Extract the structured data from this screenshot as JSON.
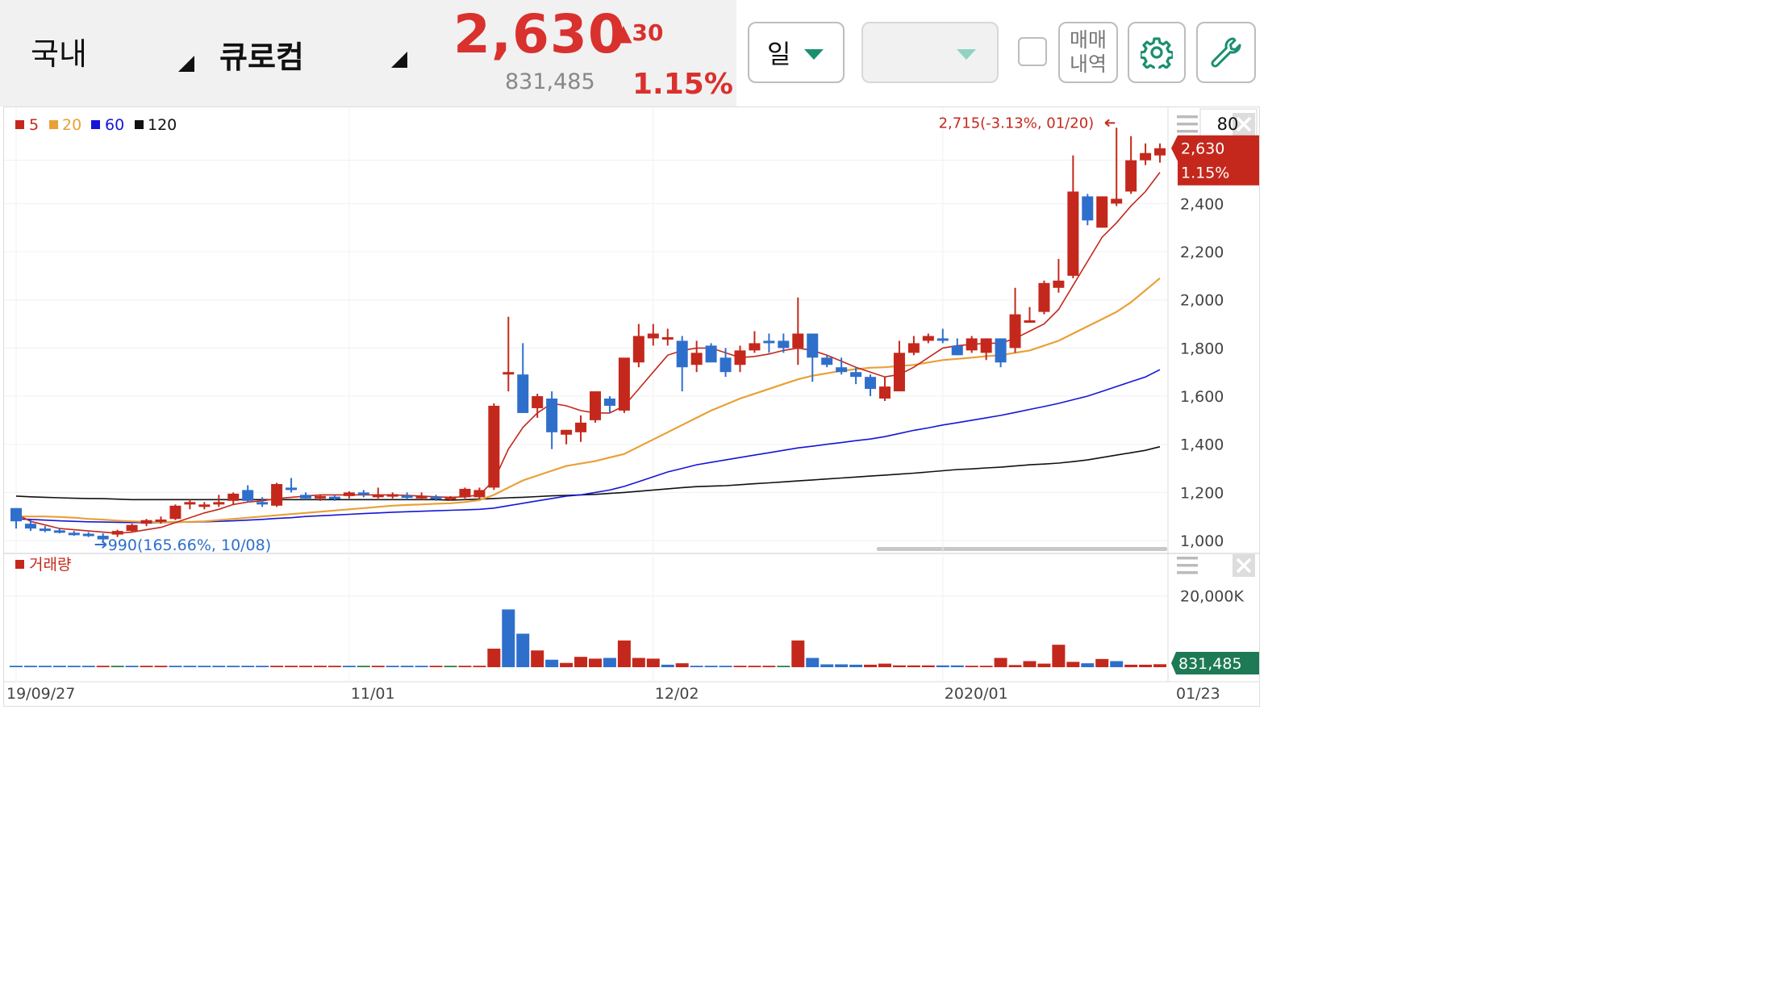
{
  "header": {
    "market_label": "국내",
    "stock_name": "큐로컴",
    "price": "2,630",
    "change": "▲30",
    "volume": "831,485",
    "change_pct": "1.15%"
  },
  "toolbar": {
    "period_label": "일",
    "second_dropdown_label": "",
    "trades_label_line1": "매매",
    "trades_label_line2": "내역",
    "icons": [
      "chevron-down-icon",
      "gear-icon",
      "wrench-icon"
    ]
  },
  "colors": {
    "up": "#c4281c",
    "down": "#2f6fcc",
    "ma5": "#c4281c",
    "ma20": "#e9a036",
    "ma60": "#1515d8",
    "ma120": "#111111",
    "accent": "#1a8f6f"
  },
  "chart_data": [
    {
      "type": "candlestick",
      "legend": [
        {
          "label": "5",
          "color": "#c4281c"
        },
        {
          "label": "20",
          "color": "#e9a036"
        },
        {
          "label": "60",
          "color": "#1515d8"
        },
        {
          "label": "120",
          "color": "#111111"
        }
      ],
      "counter_value": "80",
      "ylim": [
        960,
        2800
      ],
      "y_ticks": [
        "2,400",
        "2,200",
        "2,000",
        "1,800",
        "1,600",
        "1,400",
        "1,200",
        "1,000"
      ],
      "y_tick_values": [
        2400,
        2200,
        2000,
        1800,
        1600,
        1400,
        1200,
        1000
      ],
      "x_ticks": [
        "19/09/27",
        "11/01",
        "12/02",
        "2020/01",
        "01/23"
      ],
      "x_tick_index": [
        0,
        23,
        44,
        64,
        79
      ],
      "last_price_label": "2,630",
      "last_pct_label": "1.15%",
      "high_annotation": "2,715(-3.13%, 01/20)",
      "high_index": 76,
      "high_value": 2715,
      "low_annotation": "990(165.66%, 10/08)",
      "low_index": 6,
      "low_value": 990,
      "ohlc": [
        [
          1135,
          1135,
          1050,
          1080
        ],
        [
          1070,
          1085,
          1040,
          1050
        ],
        [
          1050,
          1060,
          1035,
          1040
        ],
        [
          1040,
          1050,
          1030,
          1035
        ],
        [
          1030,
          1040,
          1020,
          1025
        ],
        [
          1025,
          1035,
          1015,
          1022
        ],
        [
          1020,
          1030,
          990,
          1005
        ],
        [
          1025,
          1045,
          1015,
          1040
        ],
        [
          1040,
          1070,
          1035,
          1065
        ],
        [
          1070,
          1090,
          1060,
          1085
        ],
        [
          1080,
          1100,
          1070,
          1085
        ],
        [
          1090,
          1150,
          1085,
          1145
        ],
        [
          1150,
          1170,
          1130,
          1160
        ],
        [
          1140,
          1160,
          1130,
          1150
        ],
        [
          1150,
          1190,
          1140,
          1160
        ],
        [
          1165,
          1200,
          1150,
          1195
        ],
        [
          1210,
          1230,
          1160,
          1165
        ],
        [
          1160,
          1180,
          1140,
          1150
        ],
        [
          1145,
          1240,
          1140,
          1235
        ],
        [
          1220,
          1260,
          1200,
          1210
        ],
        [
          1190,
          1200,
          1170,
          1175
        ],
        [
          1175,
          1190,
          1165,
          1185
        ],
        [
          1180,
          1190,
          1165,
          1175
        ],
        [
          1185,
          1205,
          1175,
          1200
        ],
        [
          1200,
          1210,
          1180,
          1190
        ],
        [
          1180,
          1220,
          1175,
          1190
        ],
        [
          1185,
          1200,
          1175,
          1190
        ],
        [
          1185,
          1200,
          1170,
          1180
        ],
        [
          1180,
          1200,
          1170,
          1180
        ],
        [
          1180,
          1190,
          1165,
          1175
        ],
        [
          1175,
          1185,
          1165,
          1178
        ],
        [
          1180,
          1220,
          1175,
          1215
        ],
        [
          1180,
          1220,
          1175,
          1210
        ],
        [
          1220,
          1570,
          1210,
          1560
        ],
        [
          1690,
          1930,
          1620,
          1700
        ],
        [
          1690,
          1820,
          1530,
          1530
        ],
        [
          1550,
          1610,
          1510,
          1600
        ],
        [
          1590,
          1620,
          1380,
          1450
        ],
        [
          1440,
          1460,
          1400,
          1460
        ],
        [
          1450,
          1520,
          1410,
          1490
        ],
        [
          1500,
          1620,
          1490,
          1620
        ],
        [
          1590,
          1600,
          1530,
          1560
        ],
        [
          1540,
          1750,
          1530,
          1760
        ],
        [
          1740,
          1900,
          1720,
          1850
        ],
        [
          1840,
          1900,
          1810,
          1860
        ],
        [
          1840,
          1880,
          1810,
          1840
        ],
        [
          1830,
          1850,
          1620,
          1720
        ],
        [
          1730,
          1830,
          1700,
          1780
        ],
        [
          1810,
          1820,
          1750,
          1740
        ],
        [
          1760,
          1800,
          1680,
          1700
        ],
        [
          1730,
          1810,
          1700,
          1790
        ],
        [
          1790,
          1870,
          1780,
          1820
        ],
        [
          1830,
          1860,
          1780,
          1820
        ],
        [
          1830,
          1860,
          1780,
          1800
        ],
        [
          1800,
          2010,
          1730,
          1860
        ],
        [
          1860,
          1860,
          1660,
          1760
        ],
        [
          1760,
          1770,
          1720,
          1730
        ],
        [
          1720,
          1760,
          1690,
          1700
        ],
        [
          1700,
          1720,
          1650,
          1680
        ],
        [
          1680,
          1690,
          1600,
          1630
        ],
        [
          1590,
          1680,
          1580,
          1640
        ],
        [
          1620,
          1830,
          1620,
          1780
        ],
        [
          1780,
          1850,
          1770,
          1820
        ],
        [
          1830,
          1860,
          1820,
          1850
        ],
        [
          1840,
          1880,
          1820,
          1830
        ],
        [
          1810,
          1840,
          1770,
          1770
        ],
        [
          1790,
          1850,
          1780,
          1840
        ],
        [
          1780,
          1840,
          1750,
          1840
        ],
        [
          1840,
          1840,
          1720,
          1740
        ],
        [
          1800,
          2050,
          1780,
          1940
        ],
        [
          1910,
          1970,
          1910,
          1910
        ],
        [
          1950,
          2080,
          1940,
          2070
        ],
        [
          2050,
          2170,
          2030,
          2080
        ],
        [
          2100,
          2600,
          2090,
          2450
        ],
        [
          2430,
          2440,
          2310,
          2330
        ],
        [
          2300,
          2430,
          2300,
          2430
        ],
        [
          2400,
          2715,
          2390,
          2420
        ],
        [
          2450,
          2680,
          2440,
          2580
        ],
        [
          2580,
          2650,
          2560,
          2610
        ],
        [
          2600,
          2650,
          2570,
          2630
        ]
      ],
      "ma5": [
        1110,
        1080,
        1065,
        1050,
        1045,
        1040,
        1035,
        1030,
        1035,
        1045,
        1055,
        1075,
        1095,
        1115,
        1130,
        1150,
        1160,
        1165,
        1175,
        1180,
        1185,
        1190,
        1190,
        1190,
        1190,
        1190,
        1190,
        1188,
        1185,
        1182,
        1180,
        1182,
        1190,
        1250,
        1380,
        1470,
        1530,
        1570,
        1560,
        1540,
        1530,
        1530,
        1560,
        1630,
        1700,
        1770,
        1790,
        1800,
        1800,
        1780,
        1760,
        1765,
        1775,
        1790,
        1800,
        1790,
        1770,
        1745,
        1720,
        1700,
        1680,
        1690,
        1720,
        1760,
        1800,
        1810,
        1815,
        1820,
        1820,
        1840,
        1870,
        1900,
        1960,
        2060,
        2160,
        2260,
        2320,
        2390,
        2450,
        2530
      ],
      "ma20": [
        1100,
        1100,
        1100,
        1098,
        1095,
        1090,
        1087,
        1083,
        1080,
        1078,
        1077,
        1077,
        1078,
        1080,
        1085,
        1090,
        1095,
        1100,
        1105,
        1110,
        1115,
        1120,
        1125,
        1130,
        1135,
        1140,
        1145,
        1148,
        1150,
        1153,
        1155,
        1160,
        1168,
        1190,
        1220,
        1250,
        1270,
        1290,
        1310,
        1320,
        1330,
        1345,
        1360,
        1390,
        1420,
        1450,
        1480,
        1510,
        1540,
        1565,
        1590,
        1610,
        1630,
        1650,
        1670,
        1685,
        1695,
        1705,
        1712,
        1718,
        1720,
        1725,
        1730,
        1740,
        1750,
        1755,
        1760,
        1766,
        1770,
        1780,
        1790,
        1810,
        1830,
        1860,
        1890,
        1920,
        1950,
        1990,
        2040,
        2090
      ],
      "ma60": [
        1090,
        1088,
        1085,
        1082,
        1080,
        1078,
        1077,
        1076,
        1075,
        1075,
        1075,
        1076,
        1077,
        1078,
        1080,
        1082,
        1085,
        1088,
        1092,
        1095,
        1100,
        1103,
        1106,
        1109,
        1112,
        1115,
        1118,
        1120,
        1122,
        1124,
        1126,
        1128,
        1130,
        1135,
        1145,
        1155,
        1165,
        1175,
        1185,
        1190,
        1200,
        1210,
        1225,
        1245,
        1265,
        1285,
        1300,
        1315,
        1325,
        1335,
        1345,
        1355,
        1365,
        1375,
        1385,
        1392,
        1400,
        1407,
        1415,
        1422,
        1432,
        1445,
        1458,
        1468,
        1480,
        1490,
        1500,
        1510,
        1520,
        1532,
        1545,
        1557,
        1570,
        1585,
        1600,
        1620,
        1640,
        1660,
        1680,
        1710
      ],
      "ma120": [
        1185,
        1182,
        1180,
        1178,
        1176,
        1175,
        1174,
        1172,
        1170,
        1170,
        1170,
        1170,
        1170,
        1170,
        1170,
        1170,
        1170,
        1170,
        1170,
        1170,
        1170,
        1170,
        1170,
        1170,
        1170,
        1170,
        1170,
        1170,
        1170,
        1170,
        1168,
        1170,
        1172,
        1175,
        1178,
        1180,
        1183,
        1186,
        1188,
        1190,
        1192,
        1196,
        1200,
        1205,
        1210,
        1215,
        1220,
        1224,
        1226,
        1228,
        1232,
        1236,
        1240,
        1244,
        1248,
        1252,
        1256,
        1260,
        1264,
        1268,
        1272,
        1276,
        1280,
        1285,
        1290,
        1295,
        1298,
        1302,
        1305,
        1310,
        1315,
        1318,
        1322,
        1328,
        1335,
        1345,
        1355,
        1365,
        1375,
        1390
      ]
    },
    {
      "type": "bar",
      "title": "거래량",
      "ylim": [
        0,
        31000
      ],
      "y_ticks": [
        "20,000K"
      ],
      "y_tick_values": [
        20000
      ],
      "last_volume_label": "831,485",
      "values": [
        400,
        400,
        400,
        400,
        400,
        400,
        400,
        400,
        400,
        400,
        400,
        400,
        400,
        400,
        400,
        400,
        400,
        400,
        400,
        400,
        400,
        400,
        400,
        400,
        400,
        400,
        400,
        400,
        400,
        400,
        400,
        400,
        400,
        5200,
        16200,
        9400,
        4700,
        2100,
        1200,
        2900,
        2400,
        2600,
        7500,
        2600,
        2400,
        700,
        1100,
        400,
        400,
        400,
        400,
        400,
        400,
        400,
        7500,
        2600,
        800,
        800,
        700,
        700,
        1000,
        500,
        500,
        500,
        500,
        500,
        400,
        400,
        2600,
        600,
        1700,
        1000,
        6300,
        1500,
        1100,
        2300,
        1700,
        700,
        700,
        831
      ],
      "down_indices": [
        0,
        1,
        2,
        3,
        4,
        5,
        8,
        11,
        12,
        13,
        14,
        15,
        16,
        17,
        23,
        26,
        27,
        28,
        34,
        35,
        37,
        41,
        45,
        47,
        48,
        49,
        55,
        56,
        57,
        58,
        64,
        65,
        74,
        76
      ],
      "green_indices": [
        7,
        24,
        30,
        53
      ]
    }
  ]
}
